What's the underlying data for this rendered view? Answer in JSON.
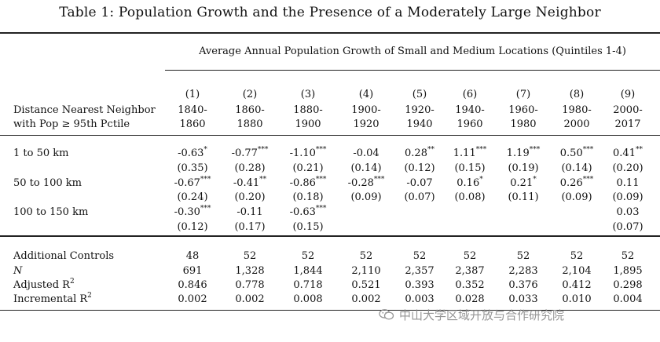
{
  "title": "Table 1: Population Growth and the Presence of a Moderately Large Neighbor",
  "spanner": "Average Annual Population Growth of Small and Medium Locations (Quintiles 1-4)",
  "row_header": {
    "line1": "Distance Nearest Neighbor",
    "line2": "with Pop ≥ 95th Pctile"
  },
  "columns": [
    {
      "num": "(1)",
      "start": "1840-",
      "end": "1860"
    },
    {
      "num": "(2)",
      "start": "1860-",
      "end": "1880"
    },
    {
      "num": "(3)",
      "start": "1880-",
      "end": "1900"
    },
    {
      "num": "(4)",
      "start": "1900-",
      "end": "1920"
    },
    {
      "num": "(5)",
      "start": "1920-",
      "end": "1940"
    },
    {
      "num": "(6)",
      "start": "1940-",
      "end": "1960"
    },
    {
      "num": "(7)",
      "start": "1960-",
      "end": "1980"
    },
    {
      "num": "(8)",
      "start": "1980-",
      "end": "2000"
    },
    {
      "num": "(9)",
      "start": "2000-",
      "end": "2017"
    }
  ],
  "rows": [
    {
      "label": "1 to 50 km",
      "coef": [
        [
          "-0.63",
          "*"
        ],
        [
          "-0.77",
          "***"
        ],
        [
          "-1.10",
          "***"
        ],
        [
          "-0.04",
          ""
        ],
        [
          "0.28",
          "**"
        ],
        [
          "1.11",
          "***"
        ],
        [
          "1.19",
          "***"
        ],
        [
          "0.50",
          "***"
        ],
        [
          "0.41",
          "**"
        ]
      ],
      "se": [
        "(0.35)",
        "(0.28)",
        "(0.21)",
        "(0.14)",
        "(0.12)",
        "(0.15)",
        "(0.19)",
        "(0.14)",
        "(0.20)"
      ]
    },
    {
      "label": "50 to 100 km",
      "coef": [
        [
          "-0.67",
          "***"
        ],
        [
          "-0.41",
          "**"
        ],
        [
          "-0.86",
          "***"
        ],
        [
          "-0.28",
          "***"
        ],
        [
          "-0.07",
          ""
        ],
        [
          "0.16",
          "*"
        ],
        [
          "0.21",
          "*"
        ],
        [
          "0.26",
          "***"
        ],
        [
          "0.11",
          ""
        ]
      ],
      "se": [
        "(0.24)",
        "(0.20)",
        "(0.18)",
        "(0.09)",
        "(0.07)",
        "(0.08)",
        "(0.11)",
        "(0.09)",
        "(0.09)"
      ]
    },
    {
      "label": "100 to 150 km",
      "coef": [
        [
          "-0.30",
          "***"
        ],
        [
          "-0.11",
          ""
        ],
        [
          "-0.63",
          "***"
        ],
        [
          "",
          ""
        ],
        [
          "",
          ""
        ],
        [
          "",
          ""
        ],
        [
          "",
          ""
        ],
        [
          "",
          ""
        ],
        [
          "0.03",
          ""
        ]
      ],
      "se": [
        "(0.12)",
        "(0.17)",
        "(0.15)",
        "",
        "",
        "",
        "",
        "",
        "(0.07)"
      ]
    }
  ],
  "stats": [
    {
      "label": "Additional Controls",
      "sup": "",
      "italic": false,
      "values": [
        "48",
        "52",
        "52",
        "52",
        "52",
        "52",
        "52",
        "52",
        "52"
      ]
    },
    {
      "label": "N",
      "sup": "",
      "italic": true,
      "values": [
        "691",
        "1,328",
        "1,844",
        "2,110",
        "2,357",
        "2,387",
        "2,283",
        "2,104",
        "1,895"
      ]
    },
    {
      "label": "Adjusted R",
      "sup": "2",
      "italic": false,
      "values": [
        "0.846",
        "0.778",
        "0.718",
        "0.521",
        "0.393",
        "0.352",
        "0.376",
        "0.412",
        "0.298"
      ]
    },
    {
      "label": "Incremental R",
      "sup": "2",
      "italic": false,
      "values": [
        "0.002",
        "0.002",
        "0.008",
        "0.002",
        "0.003",
        "0.028",
        "0.033",
        "0.010",
        "0.004"
      ]
    }
  ],
  "watermark": {
    "text": "中山大学区域开放与合作研究院",
    "icon": "wechat-icon"
  }
}
